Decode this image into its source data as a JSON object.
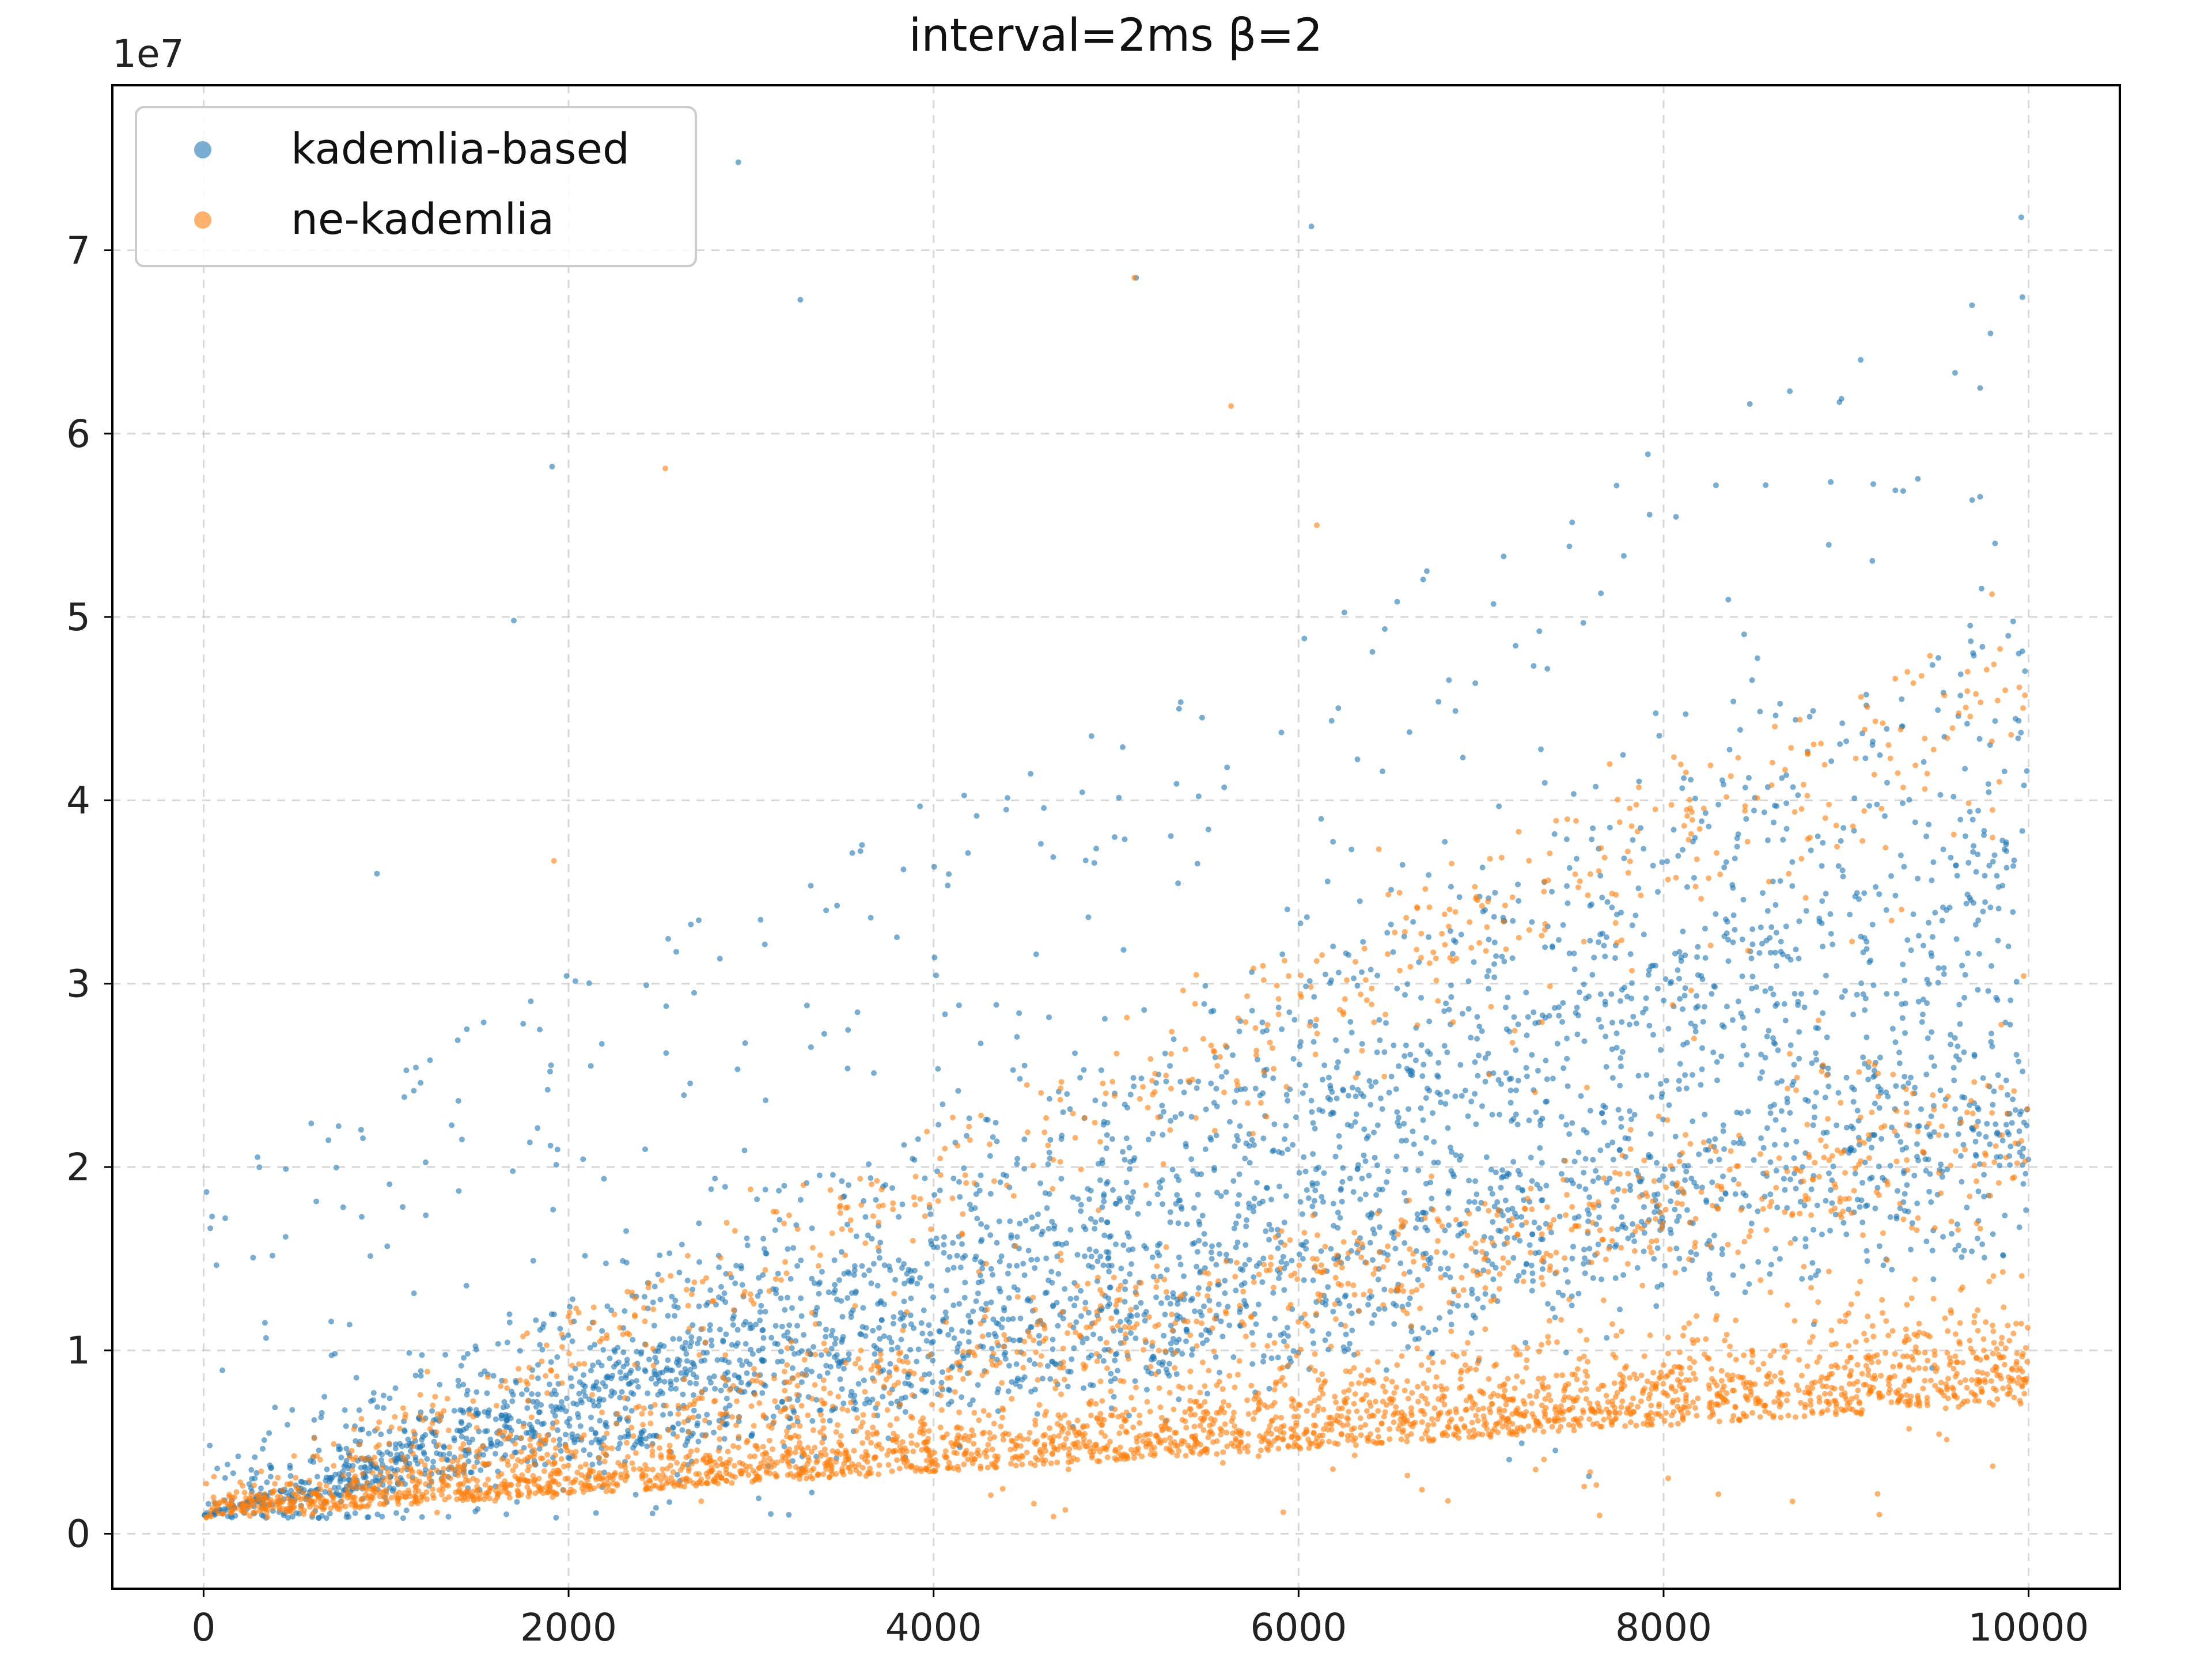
{
  "chart_data": {
    "type": "scatter",
    "title": "interval=2ms β=2",
    "xlabel": "",
    "ylabel": "",
    "y_scale_label": "1e7",
    "xlim": [
      -500,
      10500
    ],
    "ylim": [
      -3000000,
      79000000
    ],
    "xticks": [
      0,
      2000,
      4000,
      6000,
      8000,
      10000
    ],
    "xtick_labels": [
      "0",
      "2000",
      "4000",
      "6000",
      "8000",
      "10000"
    ],
    "yticks": [
      0,
      10000000,
      20000000,
      30000000,
      40000000,
      50000000,
      60000000,
      70000000
    ],
    "ytick_labels": [
      "0",
      "1",
      "2",
      "3",
      "4",
      "5",
      "6",
      "7"
    ],
    "grid": true,
    "legend_position": "top-left",
    "series": [
      {
        "name": "kademlia-based",
        "color": "#1f77b4",
        "n_points": 10000,
        "trend_bands": [
          {
            "x": [
              0,
              10000
            ],
            "y": [
              1000000,
              27000000
            ]
          },
          {
            "x": [
              0,
              10000
            ],
            "y": [
              1000000,
              45000000
            ]
          },
          {
            "x": [
              0,
              10000
            ],
            "y": [
              1000000,
              23000000
            ]
          }
        ],
        "sample_points": [
          [
            2930,
            74800000
          ],
          [
            6070,
            71300000
          ],
          [
            9960,
            71800000
          ],
          [
            5110,
            68500000
          ],
          [
            9690,
            67000000
          ],
          [
            3270,
            67300000
          ],
          [
            1910,
            58200000
          ],
          [
            1700,
            49800000
          ],
          [
            950,
            36000000
          ]
        ]
      },
      {
        "name": "ne-kademlia",
        "color": "#ff7f0e",
        "n_points": 10000,
        "trend_bands": [
          {
            "x": [
              0,
              10000
            ],
            "y": [
              900000,
              7500000
            ]
          },
          {
            "x": [
              0,
              10000
            ],
            "y": [
              900000,
              23000000
            ]
          },
          {
            "x": [
              0,
              10000
            ],
            "y": [
              900000,
              48000000
            ]
          }
        ],
        "sample_points": [
          [
            5100,
            68500000
          ],
          [
            2530,
            58100000
          ],
          [
            1920,
            36700000
          ],
          [
            6100,
            55000000
          ],
          [
            5630,
            61500000
          ]
        ]
      }
    ]
  }
}
